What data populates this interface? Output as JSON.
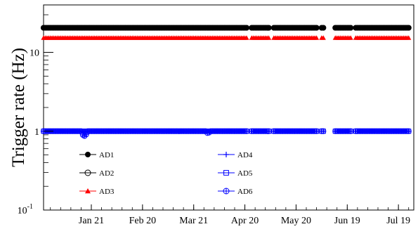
{
  "chart_data": {
    "type": "scatter",
    "title": "",
    "xlabel": "",
    "ylabel": "Trigger rate (Hz)",
    "yscale": "log",
    "ylim": [
      0.1,
      40
    ],
    "xlim": [
      "2011-12-24",
      "2012-07-28"
    ],
    "grid": false,
    "legend_position": "lower-left, two columns",
    "x_ticks": [
      {
        "date": "2012-01-21",
        "label": "Jan 21"
      },
      {
        "date": "2012-02-20",
        "label": "Feb 20"
      },
      {
        "date": "2012-03-21",
        "label": "Mar 21"
      },
      {
        "date": "2012-04-20",
        "label": "Apr 20"
      },
      {
        "date": "2012-05-20",
        "label": "May 20"
      },
      {
        "date": "2012-06-19",
        "label": "Jun 19"
      },
      {
        "date": "2012-07-19",
        "label": "Jul 19"
      }
    ],
    "y_ticks": [
      {
        "value": 0.1,
        "base": "10",
        "exp": "-1"
      },
      {
        "value": 1,
        "base": "1",
        "exp": ""
      },
      {
        "value": 10,
        "base": "10",
        "exp": ""
      }
    ],
    "data_periods": [
      [
        "2011-12-24",
        "2012-02-16"
      ],
      [
        "2012-02-17",
        "2012-04-21"
      ],
      [
        "2012-04-24",
        "2012-05-04"
      ],
      [
        "2012-05-07",
        "2012-06-01"
      ],
      [
        "2012-06-04",
        "2012-06-05"
      ],
      [
        "2012-06-12",
        "2012-06-21"
      ],
      [
        "2012-06-24",
        "2012-07-25"
      ]
    ],
    "series": [
      {
        "name": "AD1",
        "marker": "filled-circle",
        "color": "#000000",
        "value": 20.5
      },
      {
        "name": "AD2",
        "marker": "open-circle",
        "color": "#000000",
        "value": 20.5
      },
      {
        "name": "AD3",
        "marker": "filled-triangle",
        "color": "#ff0000",
        "value": 15.3
      },
      {
        "name": "AD4",
        "marker": "plus",
        "color": "#0000ff",
        "value": 1.0
      },
      {
        "name": "AD5",
        "marker": "open-square",
        "color": "#0000ff",
        "value": 1.0
      },
      {
        "name": "AD6",
        "marker": "crossed-circle",
        "color": "#0000ff",
        "value": 1.0,
        "dips": [
          [
            "2012-01-16",
            0.9
          ],
          [
            "2012-01-17",
            0.87
          ],
          [
            "2012-01-18",
            0.91
          ],
          [
            "2012-03-29",
            0.95
          ],
          [
            "2012-03-30",
            0.96
          ]
        ]
      }
    ]
  }
}
